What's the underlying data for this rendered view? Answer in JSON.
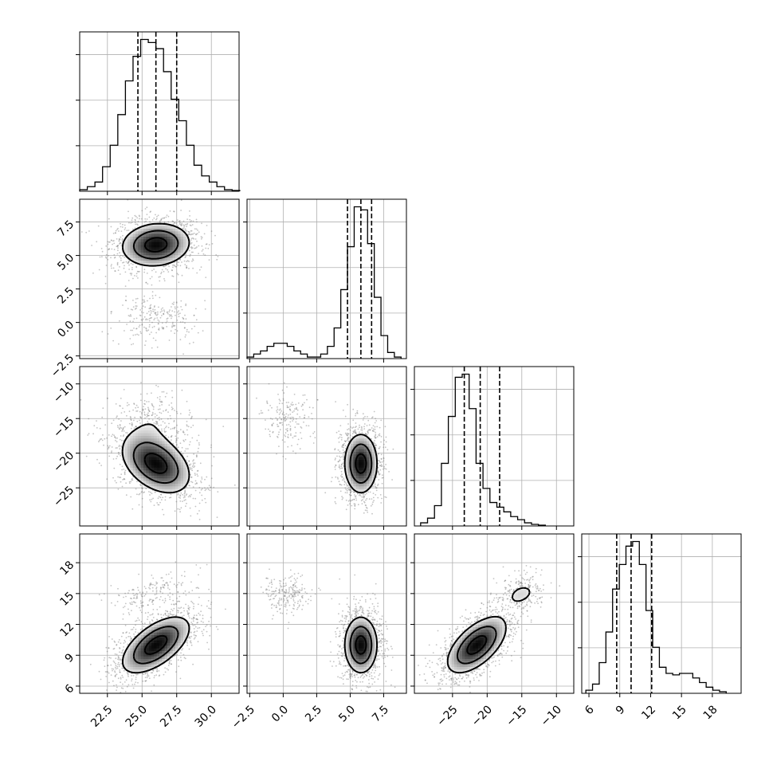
{
  "chart_data": {
    "type": "corner",
    "parameters": [
      {
        "range": [
          20.5,
          32.0
        ],
        "ticks": [
          22.5,
          25.0,
          27.5,
          30.0
        ],
        "tick_labels": [
          "22.5",
          "25.0",
          "27.5",
          "30.0"
        ],
        "quantiles": [
          24.7,
          26.0,
          27.5
        ],
        "hist": {
          "start": 20.5,
          "width": 0.55,
          "values": [
            0.01,
            0.03,
            0.06,
            0.16,
            0.3,
            0.5,
            0.72,
            0.88,
            0.99,
            0.97,
            0.93,
            0.78,
            0.6,
            0.46,
            0.3,
            0.17,
            0.1,
            0.06,
            0.03,
            0.01,
            0.005
          ]
        }
      },
      {
        "range": [
          -2.7,
          9.2
        ],
        "ticks": [
          -2.5,
          0.0,
          2.5,
          5.0,
          7.5
        ],
        "tick_labels": [
          "−2.5",
          "0.0",
          "2.5",
          "5.0",
          "7.5"
        ],
        "quantiles": [
          4.8,
          5.8,
          6.6
        ],
        "hist": {
          "start": -2.7,
          "width": 0.5,
          "values": [
            0.01,
            0.03,
            0.05,
            0.08,
            0.1,
            0.1,
            0.08,
            0.05,
            0.03,
            0.01,
            0.01,
            0.03,
            0.08,
            0.2,
            0.45,
            0.73,
            0.99,
            0.97,
            0.75,
            0.4,
            0.15,
            0.04,
            0.01
          ]
        }
      },
      {
        "range": [
          -30.5,
          -7.5
        ],
        "ticks": [
          -25,
          -20,
          -15,
          -10
        ],
        "tick_labels": [
          "−25",
          "−20",
          "−15",
          "−10"
        ],
        "quantiles": [
          -23.3,
          -21.0,
          -18.2
        ],
        "hist": {
          "start": -29.6,
          "width": 1.0,
          "values": [
            0.02,
            0.05,
            0.13,
            0.4,
            0.7,
            0.95,
            0.97,
            0.75,
            0.4,
            0.24,
            0.15,
            0.12,
            0.09,
            0.06,
            0.04,
            0.02,
            0.01,
            0.005
          ]
        }
      },
      {
        "range": [
          5.3,
          20.8
        ],
        "ticks": [
          6,
          9,
          12,
          15,
          18
        ],
        "tick_labels": [
          "6",
          "9",
          "12",
          "15",
          "18"
        ],
        "quantiles": [
          8.7,
          10.1,
          12.1
        ],
        "hist": {
          "start": 5.7,
          "width": 0.65,
          "values": [
            0.02,
            0.06,
            0.2,
            0.4,
            0.68,
            0.84,
            0.96,
            0.99,
            0.84,
            0.54,
            0.3,
            0.17,
            0.13,
            0.12,
            0.13,
            0.13,
            0.1,
            0.07,
            0.04,
            0.02,
            0.01
          ]
        }
      }
    ],
    "pairs": [
      {
        "x": 0,
        "y": 1,
        "modes": [
          {
            "cx": 26.0,
            "cy": 5.8,
            "sx": 1.6,
            "sy": 1.05,
            "rho": 0.1,
            "w": 0.85
          },
          {
            "cx": 25.9,
            "cy": 0.3,
            "sx": 1.5,
            "sy": 0.9,
            "rho": 0.0,
            "w": 0.15
          }
        ]
      },
      {
        "x": 0,
        "y": 2,
        "modes": [
          {
            "cx": 26.0,
            "cy": -21.5,
            "sx": 1.6,
            "sy": 2.8,
            "rho": -0.4,
            "w": 0.85
          },
          {
            "cx": 25.9,
            "cy": -15.0,
            "sx": 1.5,
            "sy": 2.0,
            "rho": 0.0,
            "w": 0.15
          }
        ]
      },
      {
        "x": 0,
        "y": 3,
        "modes": [
          {
            "cx": 26.0,
            "cy": 10.0,
            "sx": 1.6,
            "sy": 1.8,
            "rho": 0.6,
            "w": 0.85
          },
          {
            "cx": 25.9,
            "cy": 15.0,
            "sx": 1.5,
            "sy": 1.0,
            "rho": 0.4,
            "w": 0.15
          }
        ]
      },
      {
        "x": 1,
        "y": 2,
        "modes": [
          {
            "cx": 5.8,
            "cy": -21.5,
            "sx": 0.8,
            "sy": 2.8,
            "rho": 0.0,
            "w": 0.85
          },
          {
            "cx": 0.3,
            "cy": -15.0,
            "sx": 0.9,
            "sy": 2.0,
            "rho": 0.0,
            "w": 0.15
          }
        ]
      },
      {
        "x": 1,
        "y": 3,
        "modes": [
          {
            "cx": 5.8,
            "cy": 10.0,
            "sx": 0.8,
            "sy": 1.8,
            "rho": 0.0,
            "w": 0.85
          },
          {
            "cx": 0.3,
            "cy": 15.0,
            "sx": 0.9,
            "sy": 1.0,
            "rho": 0.0,
            "w": 0.15
          }
        ]
      },
      {
        "x": 2,
        "y": 3,
        "modes": [
          {
            "cx": -21.5,
            "cy": 10.0,
            "sx": 2.8,
            "sy": 1.8,
            "rho": 0.6,
            "w": 0.85
          },
          {
            "cx": -15.0,
            "cy": 15.0,
            "sx": 2.0,
            "sy": 1.0,
            "rho": 0.3,
            "w": 0.15
          }
        ]
      }
    ],
    "contour_levels": [
      0.5,
      1.0,
      1.5
    ],
    "grid": true
  }
}
